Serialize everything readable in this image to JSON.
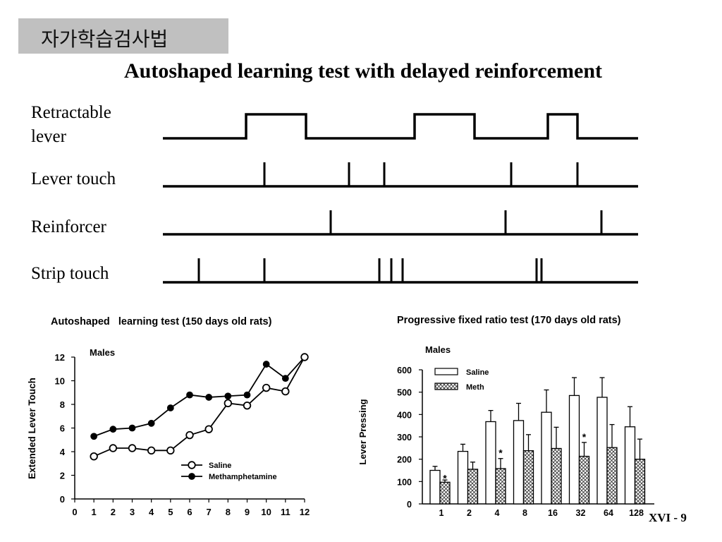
{
  "header": {
    "tag": "자가학습검사법",
    "title": "Autoshaped learning test with delayed reinforcement"
  },
  "timeline": {
    "rows": [
      {
        "label": "Retractable lever"
      },
      {
        "label": "Lever touch"
      },
      {
        "label": "Reinforcer"
      },
      {
        "label": "Strip touch"
      }
    ]
  },
  "chart_data": [
    {
      "type": "line",
      "title": "Autoshaped   learning test (150 days old rats)",
      "subtitle": "Males",
      "xlabel": "",
      "ylabel": "Extended Lever Touch",
      "x": [
        1,
        2,
        3,
        4,
        5,
        6,
        7,
        8,
        9,
        10,
        11,
        12
      ],
      "xticks": [
        0,
        1,
        2,
        3,
        4,
        5,
        6,
        7,
        8,
        9,
        10,
        11,
        12
      ],
      "yticks": [
        0,
        2,
        4,
        6,
        8,
        10,
        12
      ],
      "ylim": [
        0,
        12
      ],
      "xlim": [
        0,
        12
      ],
      "grid": false,
      "legend": "bottom-right",
      "series": [
        {
          "name": "Saline",
          "marker": "open-circle",
          "values": [
            3.6,
            4.3,
            4.3,
            4.1,
            4.1,
            5.4,
            5.9,
            8.1,
            7.9,
            9.4,
            9.1,
            12.0
          ]
        },
        {
          "name": "Methamphetamine",
          "marker": "filled-circle",
          "values": [
            5.3,
            5.9,
            6.0,
            6.4,
            7.7,
            8.8,
            8.6,
            8.7,
            8.8,
            11.4,
            10.2,
            12.0
          ]
        }
      ]
    },
    {
      "type": "bar",
      "title": "Progressive fixed ratio test (170 days old rats)",
      "subtitle": "Males",
      "xlabel": "",
      "ylabel": "Lever Pressing",
      "categories": [
        "1",
        "2",
        "4",
        "8",
        "16",
        "32",
        "64",
        "128"
      ],
      "yticks": [
        0,
        100,
        200,
        300,
        400,
        500,
        600
      ],
      "ylim": [
        0,
        600
      ],
      "grid": false,
      "legend": "top-left",
      "series": [
        {
          "name": "Saline",
          "fill": "open",
          "values": [
            150,
            235,
            368,
            373,
            410,
            485,
            477,
            345
          ],
          "errors": [
            18,
            32,
            50,
            77,
            100,
            80,
            88,
            90
          ]
        },
        {
          "name": "Meth",
          "fill": "cross-hatch",
          "values": [
            97,
            155,
            158,
            238,
            248,
            213,
            252,
            200
          ],
          "errors": [
            10,
            32,
            45,
            72,
            95,
            62,
            103,
            90
          ]
        }
      ],
      "annotations": [
        {
          "category": "1",
          "series": "Meth",
          "text": "*"
        },
        {
          "category": "4",
          "series": "Meth",
          "text": "*"
        },
        {
          "category": "32",
          "series": "Meth",
          "text": "*"
        }
      ]
    }
  ],
  "footer": {
    "page": "XVI - 9"
  }
}
